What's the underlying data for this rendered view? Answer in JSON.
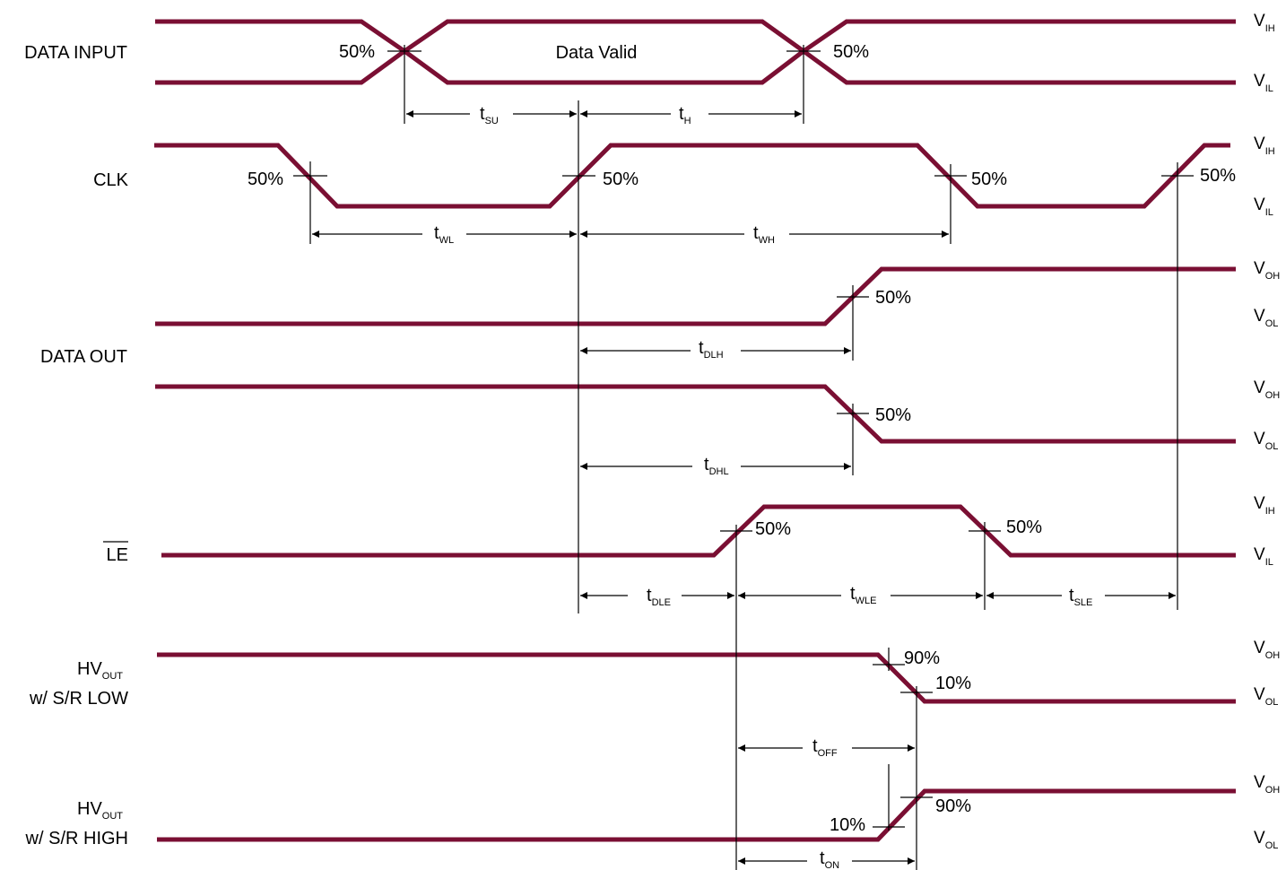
{
  "signals": {
    "data_input": "DATA INPUT",
    "clk": "CLK",
    "data_out": "DATA OUT",
    "le": "LE",
    "hv_low": {
      "main": "HV",
      "sub": "OUT",
      "line2": "w/ S/R LOW"
    },
    "hv_high": {
      "main": "HV",
      "sub": "OUT",
      "line2": "w/ S/R HIGH"
    }
  },
  "data_valid": "Data Valid",
  "pct": {
    "p50": "50%",
    "p90": "90%",
    "p10": "10%"
  },
  "levels": {
    "v": "V",
    "ih": "IH",
    "il": "IL",
    "oh": "OH",
    "ol": "OL"
  },
  "timings": {
    "t": "t",
    "su": "SU",
    "h": "H",
    "wl": "WL",
    "wh": "WH",
    "dlh": "DLH",
    "dhl": "DHL",
    "dle": "DLE",
    "wle": "WLE",
    "sle": "SLE",
    "off": "OFF",
    "on": "ON"
  },
  "colors": {
    "signal": "#7a0f33",
    "text": "#000000"
  }
}
